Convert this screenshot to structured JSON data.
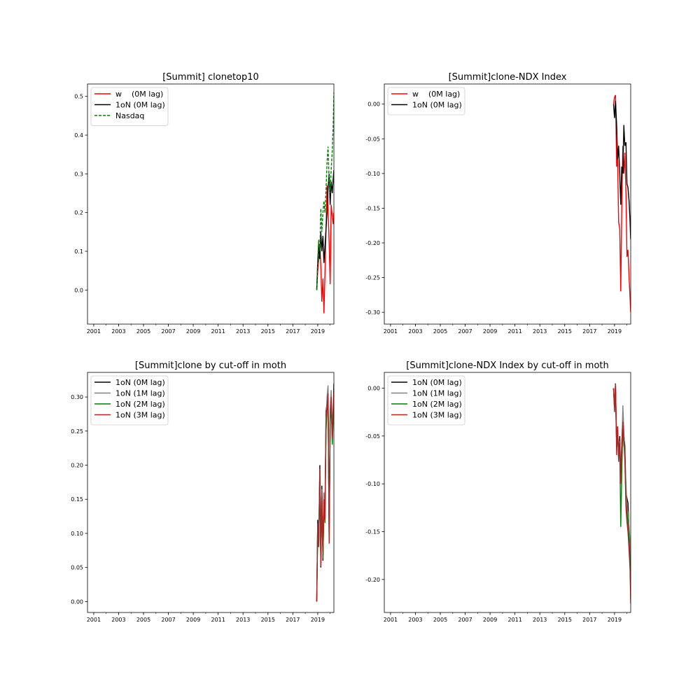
{
  "chart_data": [
    {
      "type": "line",
      "title": "[Summit] clonetop10",
      "xlabel": "",
      "ylabel": "",
      "x_ticks": [
        "2001",
        "2003",
        "2005",
        "2007",
        "2009",
        "2011",
        "2013",
        "2015",
        "2017",
        "2019"
      ],
      "xlim": [
        2000.5,
        2020.3
      ],
      "ylim": [
        -0.088,
        0.532
      ],
      "y_ticks": [
        "0.0",
        "0.1",
        "0.2",
        "0.3",
        "0.4",
        "0.5"
      ],
      "grid": false,
      "legend_position": "top-left",
      "series": [
        {
          "name": "w    (0M lag)",
          "color": "#ff0000",
          "dash": "solid",
          "x": [
            2018.92,
            2019.0,
            2019.08,
            2019.17,
            2019.25,
            2019.33,
            2019.42,
            2019.5,
            2019.58,
            2019.67,
            2019.75,
            2019.83,
            2019.92,
            2020.0,
            2020.08,
            2020.17,
            2020.25,
            2020.3
          ],
          "y": [
            0.0,
            0.05,
            0.08,
            0.11,
            0.06,
            -0.03,
            0.03,
            -0.06,
            0.04,
            0.16,
            0.27,
            0.21,
            0.12,
            0.015,
            0.22,
            0.19,
            0.17,
            0.2
          ]
        },
        {
          "name": "1oN (0M lag)",
          "color": "#000000",
          "dash": "solid",
          "x": [
            2018.92,
            2019.0,
            2019.08,
            2019.17,
            2019.25,
            2019.33,
            2019.42,
            2019.5,
            2019.58,
            2019.67,
            2019.75,
            2019.83,
            2019.92,
            2020.0,
            2020.08,
            2020.17,
            2020.25,
            2020.3
          ],
          "y": [
            0.0,
            0.07,
            0.12,
            0.08,
            0.15,
            0.1,
            0.14,
            0.07,
            0.11,
            0.16,
            0.2,
            0.26,
            0.3,
            0.22,
            0.28,
            0.25,
            0.29,
            0.31
          ]
        },
        {
          "name": "Nasdaq",
          "color": "#008000",
          "dash": "dashed",
          "x": [
            2018.92,
            2019.0,
            2019.08,
            2019.17,
            2019.25,
            2019.33,
            2019.42,
            2019.5,
            2019.58,
            2019.67,
            2019.75,
            2019.83,
            2019.92,
            2020.0,
            2020.08,
            2020.17,
            2020.25,
            2020.3
          ],
          "y": [
            0.0,
            0.08,
            0.13,
            0.1,
            0.21,
            0.15,
            0.2,
            0.23,
            0.2,
            0.26,
            0.33,
            0.37,
            0.28,
            0.25,
            0.31,
            0.36,
            0.43,
            0.51
          ]
        }
      ]
    },
    {
      "type": "line",
      "title": "[Summit]clone-NDX Index",
      "xlabel": "",
      "ylabel": "",
      "x_ticks": [
        "2001",
        "2003",
        "2005",
        "2007",
        "2009",
        "2011",
        "2013",
        "2015",
        "2017",
        "2019"
      ],
      "xlim": [
        2000.5,
        2020.3
      ],
      "ylim": [
        -0.317,
        0.029
      ],
      "y_ticks": [
        "0.00",
        "-0.05",
        "-0.10",
        "-0.15",
        "-0.20",
        "-0.25",
        "-0.30"
      ],
      "grid": false,
      "legend_position": "top-left",
      "series": [
        {
          "name": "w    (0M lag)",
          "color": "#ff0000",
          "dash": "solid",
          "x": [
            2018.92,
            2019.0,
            2019.08,
            2019.17,
            2019.25,
            2019.33,
            2019.42,
            2019.5,
            2019.58,
            2019.67,
            2019.75,
            2019.83,
            2019.92,
            2020.0,
            2020.08,
            2020.17,
            2020.25,
            2020.3
          ],
          "y": [
            0.0,
            0.01,
            0.013,
            -0.09,
            -0.08,
            -0.17,
            -0.18,
            -0.27,
            -0.15,
            -0.06,
            -0.1,
            -0.07,
            -0.13,
            -0.22,
            -0.21,
            -0.25,
            -0.28,
            -0.3
          ]
        },
        {
          "name": "1oN (0M lag)",
          "color": "#000000",
          "dash": "solid",
          "x": [
            2018.92,
            2019.0,
            2019.08,
            2019.17,
            2019.25,
            2019.33,
            2019.42,
            2019.5,
            2019.58,
            2019.67,
            2019.75,
            2019.83,
            2019.92,
            2020.0,
            2020.08,
            2020.17,
            2020.25,
            2020.3
          ],
          "y": [
            0.0,
            -0.02,
            0.005,
            -0.03,
            -0.08,
            -0.06,
            -0.1,
            -0.145,
            -0.09,
            -0.1,
            -0.03,
            -0.06,
            -0.055,
            -0.115,
            -0.12,
            -0.14,
            -0.17,
            -0.195
          ]
        }
      ]
    },
    {
      "type": "line",
      "title": "[Summit]clone by cut-off in moth",
      "xlabel": "",
      "ylabel": "",
      "x_ticks": [
        "2001",
        "2003",
        "2005",
        "2007",
        "2009",
        "2011",
        "2013",
        "2015",
        "2017",
        "2019"
      ],
      "xlim": [
        2000.5,
        2020.3
      ],
      "ylim": [
        -0.016,
        0.336
      ],
      "y_ticks": [
        "0.00",
        "0.05",
        "0.10",
        "0.15",
        "0.20",
        "0.25",
        "0.30"
      ],
      "grid": false,
      "legend_position": "top-left",
      "series": [
        {
          "name": "1oN (0M lag)",
          "color": "#000000",
          "dash": "solid",
          "x": [
            2018.92,
            2019.0,
            2019.08,
            2019.17,
            2019.25,
            2019.33,
            2019.42,
            2019.5,
            2019.58,
            2019.67,
            2019.75,
            2019.83,
            2019.92,
            2020.0,
            2020.08,
            2020.17,
            2020.25,
            2020.3
          ],
          "y": [
            0.0,
            0.12,
            0.08,
            0.2,
            0.05,
            0.17,
            0.06,
            0.15,
            0.12,
            0.28,
            0.29,
            0.31,
            0.09,
            0.27,
            0.3,
            0.24,
            0.28,
            0.32
          ]
        },
        {
          "name": "1oN (1M lag)",
          "color": "#808080",
          "dash": "solid",
          "x": [
            2018.92,
            2019.0,
            2019.08,
            2019.17,
            2019.25,
            2019.33,
            2019.42,
            2019.5,
            2019.58,
            2019.67,
            2019.75,
            2019.83,
            2019.92,
            2020.0,
            2020.08,
            2020.17,
            2020.25,
            2020.3
          ],
          "y": [
            0.0,
            0.11,
            0.09,
            0.19,
            0.06,
            0.16,
            0.07,
            0.16,
            0.13,
            0.27,
            0.3,
            0.317,
            0.1,
            0.28,
            0.31,
            0.25,
            0.29,
            0.3
          ]
        },
        {
          "name": "1oN (2M lag)",
          "color": "#008000",
          "dash": "solid",
          "x": [
            2018.92,
            2019.0,
            2019.08,
            2019.17,
            2019.25,
            2019.33,
            2019.42,
            2019.5,
            2019.58,
            2019.67,
            2019.75,
            2019.83,
            2019.92,
            2020.0,
            2020.08,
            2020.17,
            2020.25,
            2020.3
          ],
          "y": [
            0.0,
            0.1,
            0.085,
            0.18,
            0.055,
            0.15,
            0.063,
            0.14,
            0.115,
            0.25,
            0.28,
            0.3,
            0.095,
            0.26,
            0.29,
            0.23,
            0.27,
            0.29
          ]
        },
        {
          "name": "1oN (3M lag)",
          "color": "#b22222",
          "dash": "solid",
          "x": [
            2018.92,
            2019.0,
            2019.08,
            2019.17,
            2019.25,
            2019.33,
            2019.42,
            2019.5,
            2019.58,
            2019.67,
            2019.75,
            2019.83,
            2019.92,
            2020.0,
            2020.08,
            2020.17,
            2020.25,
            2020.3
          ],
          "y": [
            0.0,
            0.115,
            0.08,
            0.195,
            0.052,
            0.165,
            0.07,
            0.15,
            0.12,
            0.27,
            0.285,
            0.305,
            0.085,
            0.27,
            0.3,
            0.24,
            0.28,
            0.31
          ]
        }
      ]
    },
    {
      "type": "line",
      "title": "[Summit]clone-NDX Index by cut-off in moth",
      "xlabel": "",
      "ylabel": "",
      "x_ticks": [
        "2001",
        "2003",
        "2005",
        "2007",
        "2009",
        "2011",
        "2013",
        "2015",
        "2017",
        "2019"
      ],
      "xlim": [
        2000.5,
        2020.3
      ],
      "ylim": [
        -0.2345,
        0.0165
      ],
      "y_ticks": [
        "0.00",
        "-0.05",
        "-0.10",
        "-0.15",
        "-0.20"
      ],
      "grid": false,
      "legend_position": "top-left",
      "series": [
        {
          "name": "1oN (0M lag)",
          "color": "#000000",
          "dash": "solid",
          "x": [
            2018.92,
            2019.0,
            2019.08,
            2019.17,
            2019.25,
            2019.33,
            2019.42,
            2019.5,
            2019.58,
            2019.67,
            2019.75,
            2019.83,
            2019.92,
            2020.0,
            2020.08,
            2020.17,
            2020.25,
            2020.3
          ],
          "y": [
            0.0,
            -0.02,
            0.005,
            -0.06,
            -0.04,
            -0.075,
            -0.05,
            -0.095,
            -0.06,
            -0.03,
            -0.05,
            -0.06,
            -0.11,
            -0.115,
            -0.12,
            -0.15,
            -0.17,
            -0.215
          ]
        },
        {
          "name": "1oN (1M lag)",
          "color": "#808080",
          "dash": "solid",
          "x": [
            2018.92,
            2019.0,
            2019.08,
            2019.17,
            2019.25,
            2019.33,
            2019.42,
            2019.5,
            2019.58,
            2019.67,
            2019.75,
            2019.83,
            2019.92,
            2020.0,
            2020.08,
            2020.17,
            2020.25,
            2020.3
          ],
          "y": [
            0.0,
            -0.015,
            0.0,
            -0.055,
            -0.045,
            -0.07,
            -0.06,
            -0.09,
            -0.07,
            -0.018,
            -0.045,
            -0.07,
            -0.1,
            -0.125,
            -0.13,
            -0.145,
            -0.16,
            -0.2
          ]
        },
        {
          "name": "1oN (2M lag)",
          "color": "#008000",
          "dash": "solid",
          "x": [
            2018.92,
            2019.0,
            2019.08,
            2019.17,
            2019.25,
            2019.33,
            2019.42,
            2019.5,
            2019.58,
            2019.67,
            2019.75,
            2019.83,
            2019.92,
            2020.0,
            2020.08,
            2020.17,
            2020.25,
            2020.3
          ],
          "y": [
            0.0,
            -0.02,
            -0.01,
            -0.06,
            -0.05,
            -0.07,
            -0.06,
            -0.145,
            -0.09,
            -0.04,
            -0.06,
            -0.065,
            -0.12,
            -0.13,
            -0.14,
            -0.16,
            -0.18,
            -0.22
          ]
        },
        {
          "name": "1oN (3M lag)",
          "color": "#b22222",
          "dash": "solid",
          "x": [
            2018.92,
            2019.0,
            2019.08,
            2019.17,
            2019.25,
            2019.33,
            2019.42,
            2019.5,
            2019.58,
            2019.67,
            2019.75,
            2019.83,
            2019.92,
            2020.0,
            2020.08,
            2020.17,
            2020.25,
            2020.3
          ],
          "y": [
            0.0,
            -0.025,
            0.005,
            -0.07,
            -0.04,
            -0.077,
            -0.055,
            -0.1,
            -0.06,
            -0.035,
            -0.055,
            -0.075,
            -0.125,
            -0.14,
            -0.15,
            -0.17,
            -0.19,
            -0.225
          ]
        }
      ]
    }
  ]
}
